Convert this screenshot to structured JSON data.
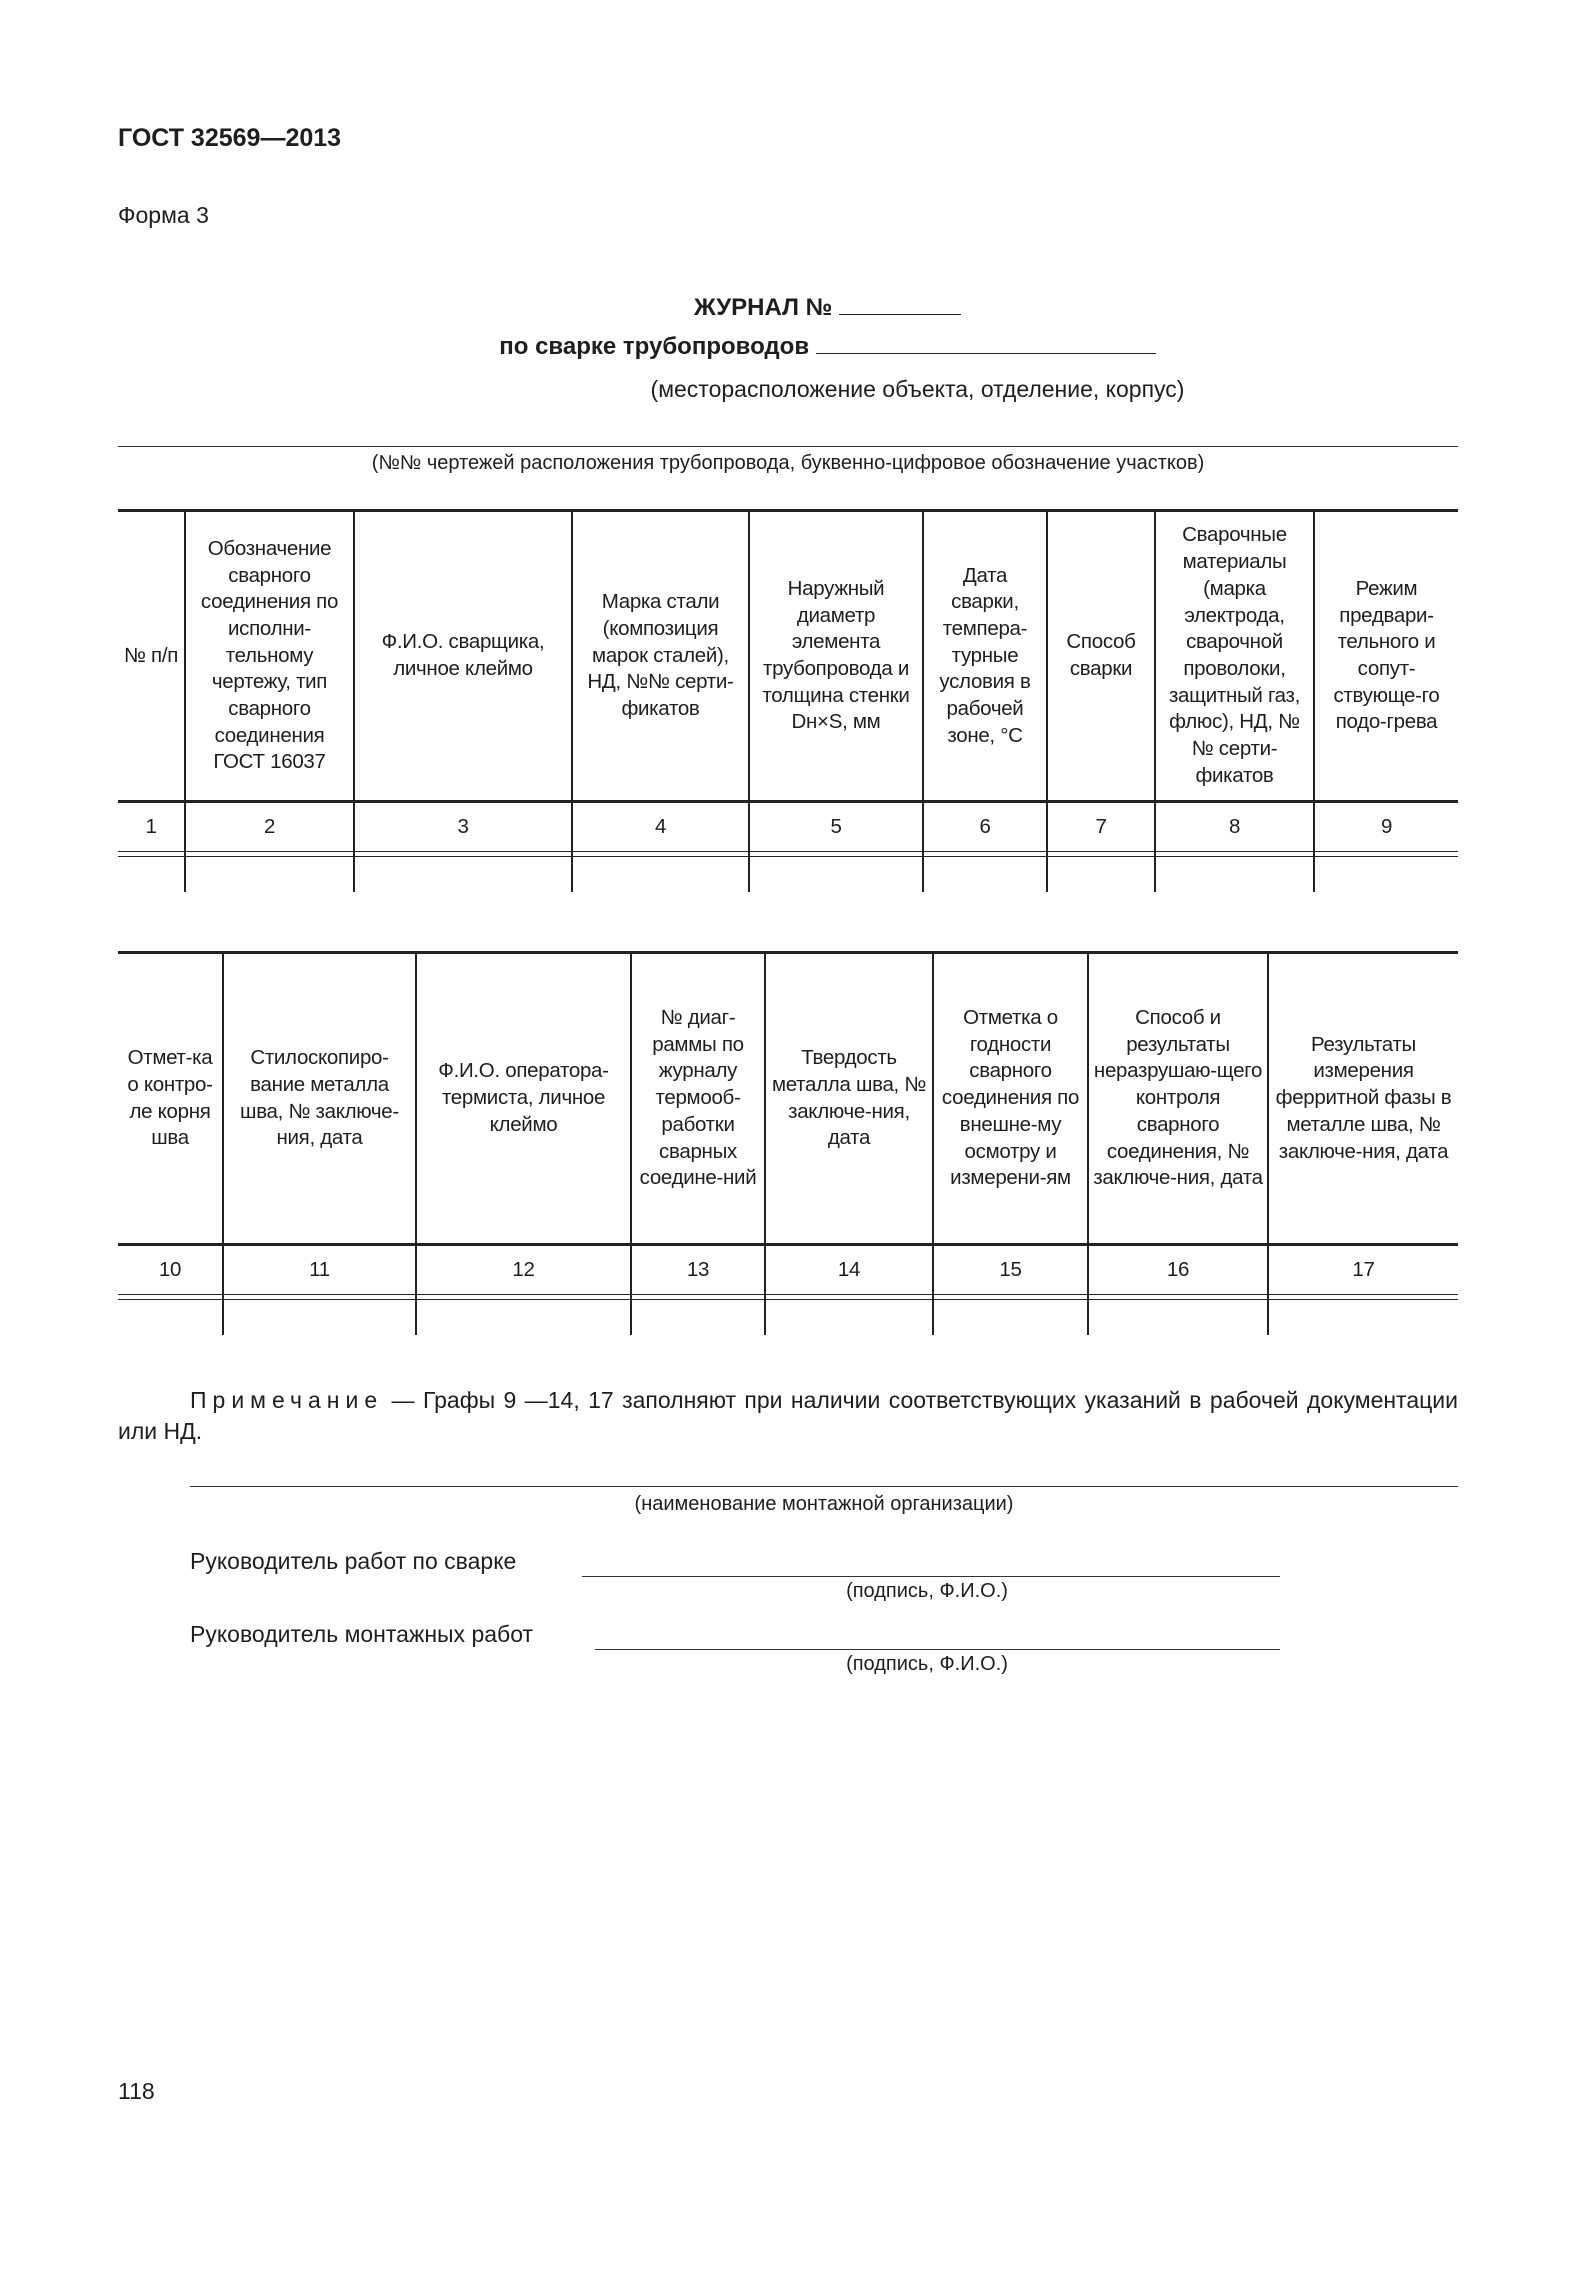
{
  "header": {
    "standard": "ГОСТ 32569—2013",
    "form": "Форма 3"
  },
  "title": {
    "journal": "ЖУРНАЛ №",
    "subject": "по сварке трубопроводов",
    "location_caption": "(месторасположение объекта, отделение, корпус)",
    "drawings_caption": "(№№ чертежей расположения трубопровода, буквенно-цифровое обозначение участков)"
  },
  "table1": {
    "headers": [
      "№ п/п",
      "Обозначение сварного соединения по исполни-тельному чертежу, тип сварного соединения ГОСТ 16037",
      "Ф.И.О. сварщика, личное клеймо",
      "Марка стали (композиция марок сталей), НД, №№ серти-фикатов",
      "Наружный диаметр элемента трубопровода и толщина стенки Dн×S, мм",
      "Дата сварки, темпера-турные условия в рабочей зоне, °С",
      "Способ сварки",
      "Сварочные материалы (марка электрода, сварочной проволоки, защитный газ, флюс), НД, №№ серти-фикатов",
      "Режим предвари-тельного и сопут-ствующе-го подо-грева"
    ],
    "numbers": [
      "1",
      "2",
      "3",
      "4",
      "5",
      "6",
      "7",
      "8",
      "9"
    ]
  },
  "table2": {
    "headers": [
      "Отмет-ка о контро-ле корня шва",
      "Стилоскопиро-вание металла шва, № заключе-ния, дата",
      "Ф.И.О. оператора-термиста, личное клеймо",
      "№ диаг-раммы по журналу термооб-работки сварных соедине-ний",
      "Твердость металла шва, № заключе-ния, дата",
      "Отметка о годности сварного соединения по внешне-му осмотру и измерени-ям",
      "Способ и результаты неразрушаю-щего контроля сварного соединения, № заключе-ния, дата",
      "Результаты измерения ферритной фазы в металле шва, № заключе-ния, дата"
    ],
    "numbers": [
      "10",
      "11",
      "12",
      "13",
      "14",
      "15",
      "16",
      "17"
    ]
  },
  "note": {
    "label": "Примечание",
    "text": "— Графы 9 —14, 17 заполняют при наличии соответствующих указаний в рабочей документации или НД."
  },
  "signatures": {
    "org_caption": "(наименование монтажной организации)",
    "welding_head": "Руководитель работ по сварке",
    "welding_caption": "(подпись, Ф.И.О.)",
    "assembly_head": "Руководитель монтажных работ",
    "assembly_caption": "(подпись, Ф.И.О.)"
  },
  "page_number": "118"
}
